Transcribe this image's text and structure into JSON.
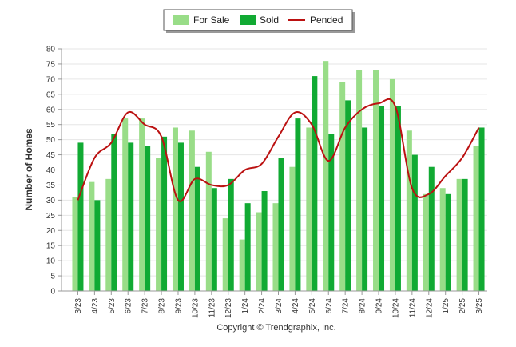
{
  "chart_data": {
    "type": "bar",
    "ylabel": "Number of Homes",
    "xlabel": "",
    "ylim": [
      0,
      80
    ],
    "yticks": [
      0,
      5,
      10,
      15,
      20,
      25,
      30,
      35,
      40,
      45,
      50,
      55,
      60,
      65,
      70,
      75,
      80
    ],
    "grid": true,
    "legend_position": "top-center",
    "credit": "Copyright © Trendgraphix, Inc.",
    "categories": [
      "3/23",
      "4/23",
      "5/23",
      "6/23",
      "7/23",
      "8/23",
      "9/23",
      "10/23",
      "11/23",
      "12/23",
      "1/24",
      "2/24",
      "3/24",
      "4/24",
      "5/24",
      "6/24",
      "7/24",
      "8/24",
      "9/24",
      "10/24",
      "11/24",
      "12/24",
      "1/25",
      "2/25",
      "3/25"
    ],
    "series": [
      {
        "name": "For Sale",
        "type": "bar",
        "color": "#99dd88",
        "values": [
          31,
          36,
          37,
          57,
          57,
          44,
          54,
          53,
          46,
          24,
          17,
          26,
          29,
          41,
          54,
          76,
          69,
          73,
          73,
          70,
          53,
          32,
          34,
          37,
          48
        ]
      },
      {
        "name": "Sold",
        "type": "bar",
        "color": "#11aa33",
        "values": [
          49,
          30,
          52,
          49,
          48,
          51,
          49,
          41,
          34,
          37,
          29,
          33,
          44,
          57,
          71,
          52,
          63,
          54,
          61,
          61,
          45,
          41,
          32,
          37,
          54
        ]
      },
      {
        "name": "Pended",
        "type": "line",
        "color": "#bb1111",
        "values": [
          30,
          44,
          49,
          59,
          55,
          51,
          30,
          37,
          35,
          35,
          40,
          42,
          51,
          59,
          55,
          43,
          54,
          60,
          62,
          61,
          34,
          32,
          38,
          44,
          54
        ]
      }
    ]
  }
}
